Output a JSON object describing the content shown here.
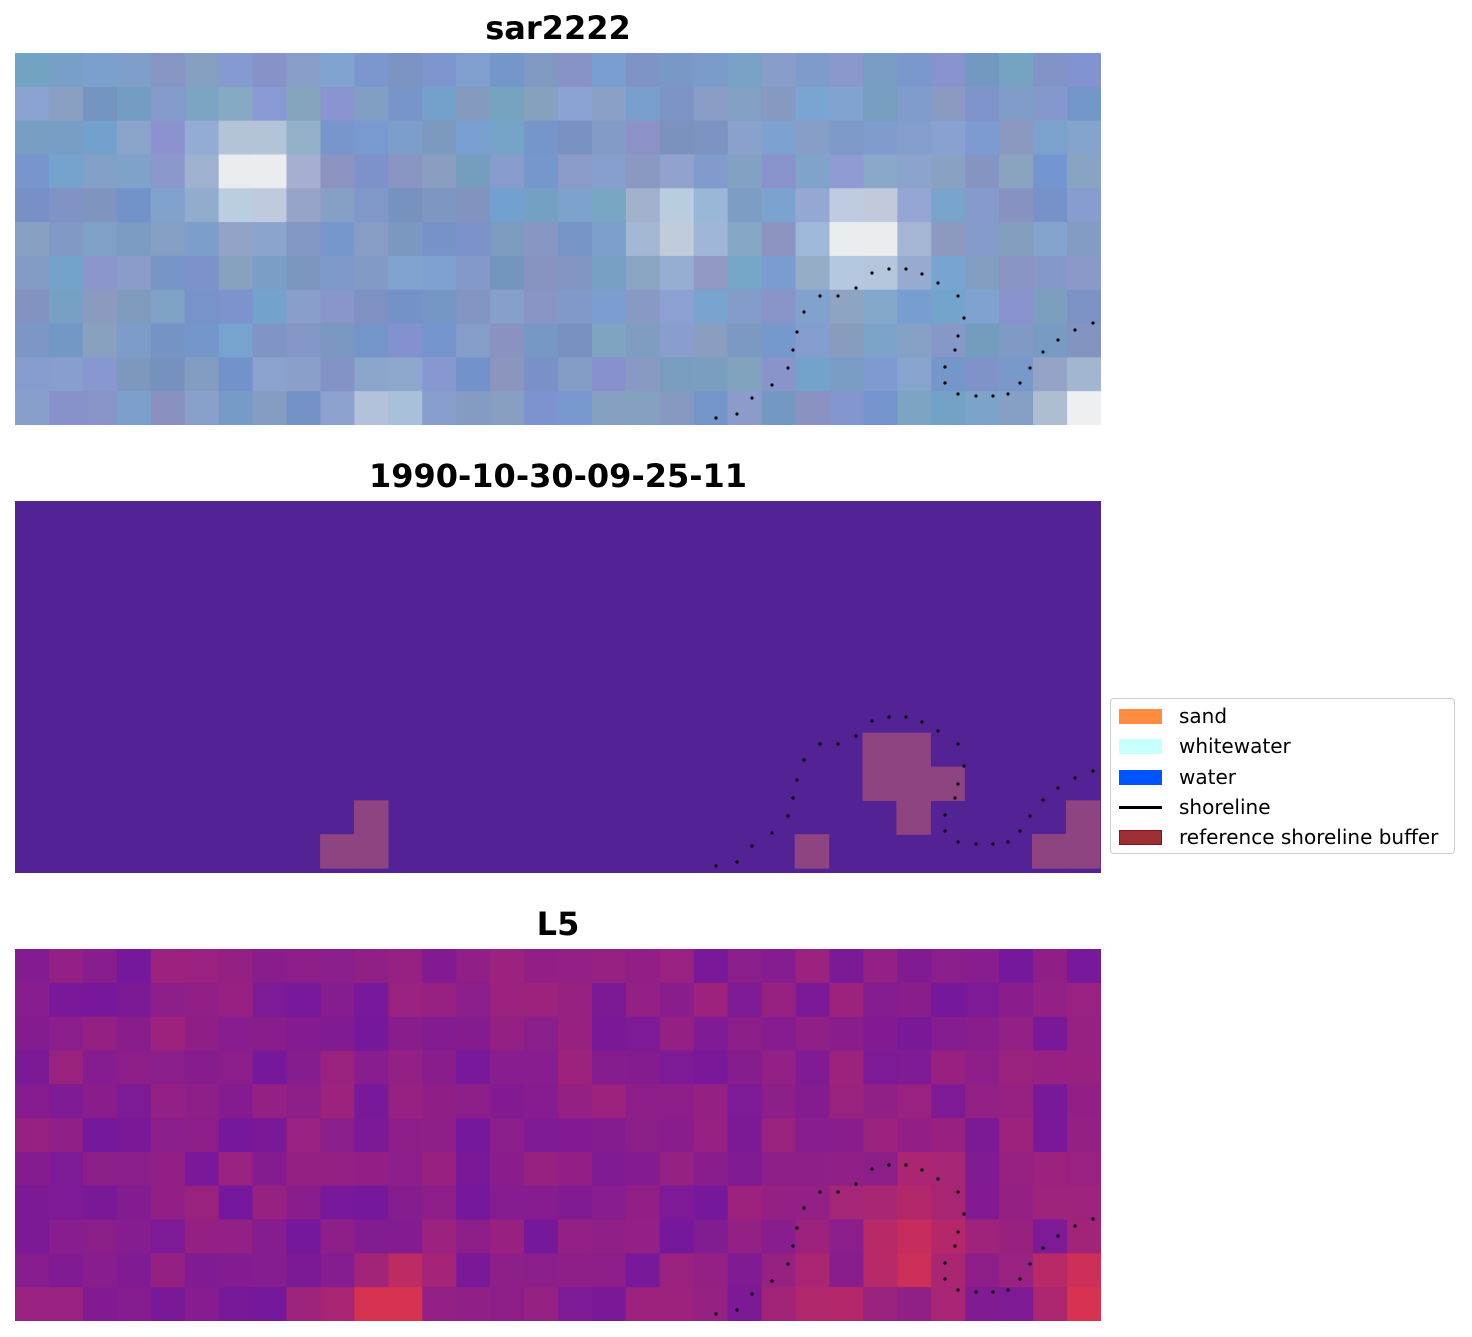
{
  "panels": [
    {
      "title": "sar2222",
      "image": "rgb-satellite-image"
    },
    {
      "title": "1990-10-30-09-25-11",
      "image": "classified-image"
    },
    {
      "title": "L5",
      "image": "mndwi-index-image"
    }
  ],
  "legend": {
    "placement": "center-right",
    "items": [
      {
        "label": "sand",
        "color": "#ff8c3f"
      },
      {
        "label": "whitewater",
        "color": "#c8ffff"
      },
      {
        "label": "water",
        "color": "#0055ff"
      },
      {
        "label": "shoreline",
        "color": "#000000"
      },
      {
        "label": "reference shoreline buffer",
        "color": "#9b2f33"
      }
    ]
  }
}
